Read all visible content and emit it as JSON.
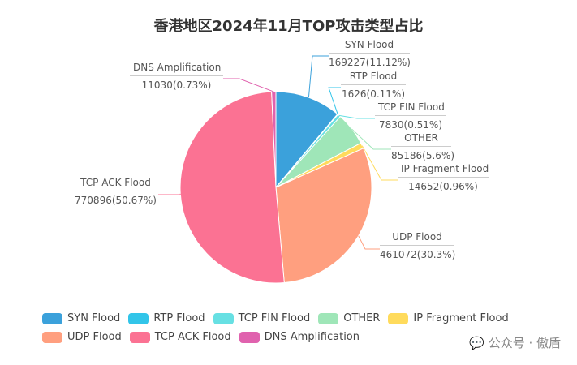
{
  "chart_data": {
    "type": "pie",
    "title": "香港地区2024年11月TOP攻击类型占比",
    "slices": [
      {
        "name": "SYN Flood",
        "value": 169227,
        "label": "169227(11.12%)",
        "color": "#3ba1db"
      },
      {
        "name": "RTP Flood",
        "value": 1626,
        "label": "1626(0.11%)",
        "color": "#32c5e9"
      },
      {
        "name": "TCP FIN Flood",
        "value": 7830,
        "label": "7830(0.51%)",
        "color": "#67e0e3"
      },
      {
        "name": "OTHER",
        "value": 85186,
        "label": "85186(5.6%)",
        "color": "#9fe6b8"
      },
      {
        "name": "IP Fragment Flood",
        "value": 14652,
        "label": "14652(0.96%)",
        "color": "#ffdb5c"
      },
      {
        "name": "UDP Flood",
        "value": 461072,
        "label": "461072(30.3%)",
        "color": "#ff9f7f"
      },
      {
        "name": "TCP ACK Flood",
        "value": 770896,
        "label": "770896(50.67%)",
        "color": "#fb7293"
      },
      {
        "name": "DNS Amplification",
        "value": 11030,
        "label": "11030(0.73%)",
        "color": "#e062ae"
      }
    ],
    "legend_position": "bottom-left"
  },
  "watermark": "公众号 · 傲盾"
}
